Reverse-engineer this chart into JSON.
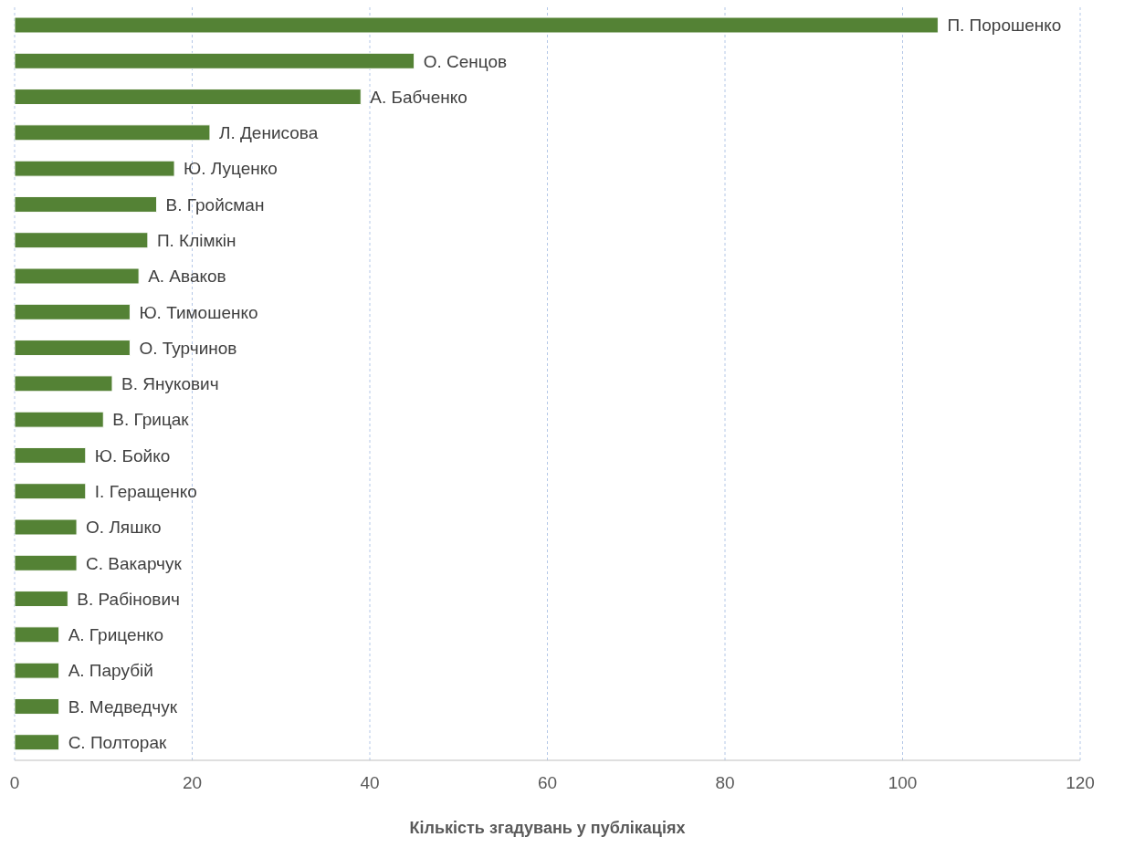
{
  "chart_data": {
    "type": "bar",
    "orientation": "horizontal",
    "xlabel": "Кількість згадувань у публікаціях",
    "categories": [
      "П. Порошенко",
      "О. Сенцов",
      "А. Бабченко",
      "Л. Денисова",
      "Ю. Луценко",
      "В. Гройсман",
      "П. Клімкін",
      "А. Аваков",
      "Ю. Тимошенко",
      "О. Турчинов",
      "В. Янукович",
      "В. Грицак",
      "Ю. Бойко",
      "І. Геращенко",
      "О. Ляшко",
      "С. Вакарчук",
      "В. Рабінович",
      "А. Гриценко",
      "А. Парубій",
      "В. Медведчук",
      "С. Полторак"
    ],
    "values": [
      104,
      45,
      39,
      22,
      18,
      16,
      15,
      14,
      13,
      13,
      11,
      10,
      8,
      8,
      7,
      7,
      6,
      5,
      5,
      5,
      5
    ],
    "color": "#548235",
    "xlim": [
      0,
      120
    ],
    "xticks": [
      0,
      20,
      40,
      60,
      80,
      100,
      120
    ],
    "grid": "x",
    "tick_labels": "x"
  }
}
